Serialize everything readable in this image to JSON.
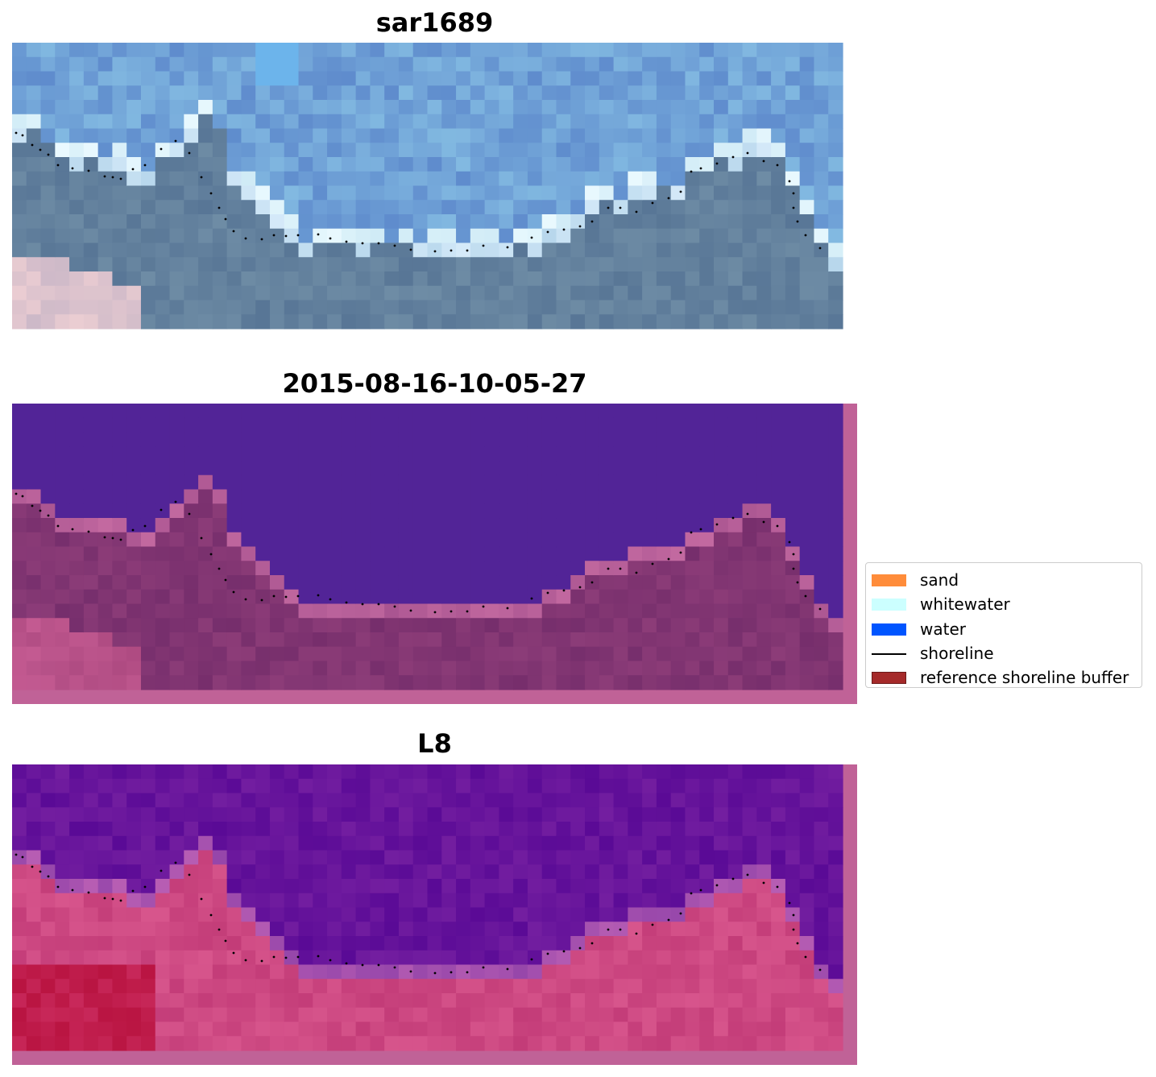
{
  "panels": [
    {
      "title": "sar1689",
      "style": "rgb"
    },
    {
      "title": "2015-08-16-10-05-27",
      "style": "classified"
    },
    {
      "title": "L8",
      "style": "index"
    }
  ],
  "legend": {
    "items": [
      {
        "label": "sand",
        "kind": "patch",
        "color": "#ff8c3a"
      },
      {
        "label": "whitewater",
        "kind": "patch",
        "color": "#ccffff"
      },
      {
        "label": "water",
        "kind": "patch",
        "color": "#0055ff"
      },
      {
        "label": "shoreline",
        "kind": "line",
        "color": "#000000"
      },
      {
        "label": "reference shoreline buffer",
        "kind": "patch",
        "color": "#a52a2a"
      }
    ]
  },
  "colors": {
    "sky_blue": "#6f95c9",
    "ocean_gray": "#5e7ea0",
    "classified_water": "#522497",
    "classified_land": "#7b3271",
    "buffer_pink": "#c06297",
    "index_water": "#6519a0",
    "index_land": "#c94578"
  }
}
